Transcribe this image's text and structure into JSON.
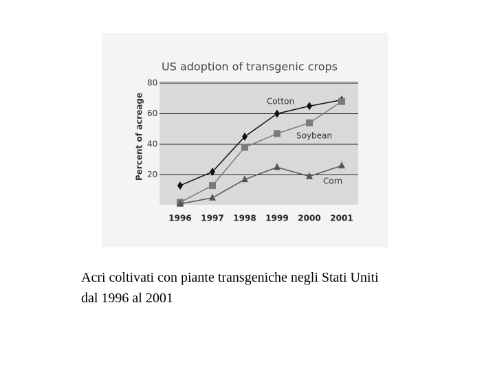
{
  "chart_data": {
    "type": "line",
    "title": "US adoption of transgenic crops",
    "y_label": "Percent of acreage",
    "categories": [
      "1996",
      "1997",
      "1998",
      "1999",
      "2000",
      "2001"
    ],
    "series": [
      {
        "name": "Cotton",
        "color": "#111111",
        "marker": "diamond",
        "values": [
          13,
          22,
          45,
          60,
          65,
          69
        ]
      },
      {
        "name": "Soybean",
        "color": "#7a7a7a",
        "marker": "square",
        "values": [
          2,
          13,
          38,
          47,
          54,
          68
        ]
      },
      {
        "name": "Corn",
        "color": "#555555",
        "marker": "triangle",
        "values": [
          1,
          5,
          17,
          25,
          19,
          26
        ]
      }
    ],
    "ylim": [
      0,
      80
    ],
    "yticks": [
      20,
      40,
      60,
      80
    ],
    "grid": true
  },
  "caption": [
    "Acri coltivati con piante transgeniche negli Stati Uniti",
    "dal 1996 al 2001"
  ]
}
